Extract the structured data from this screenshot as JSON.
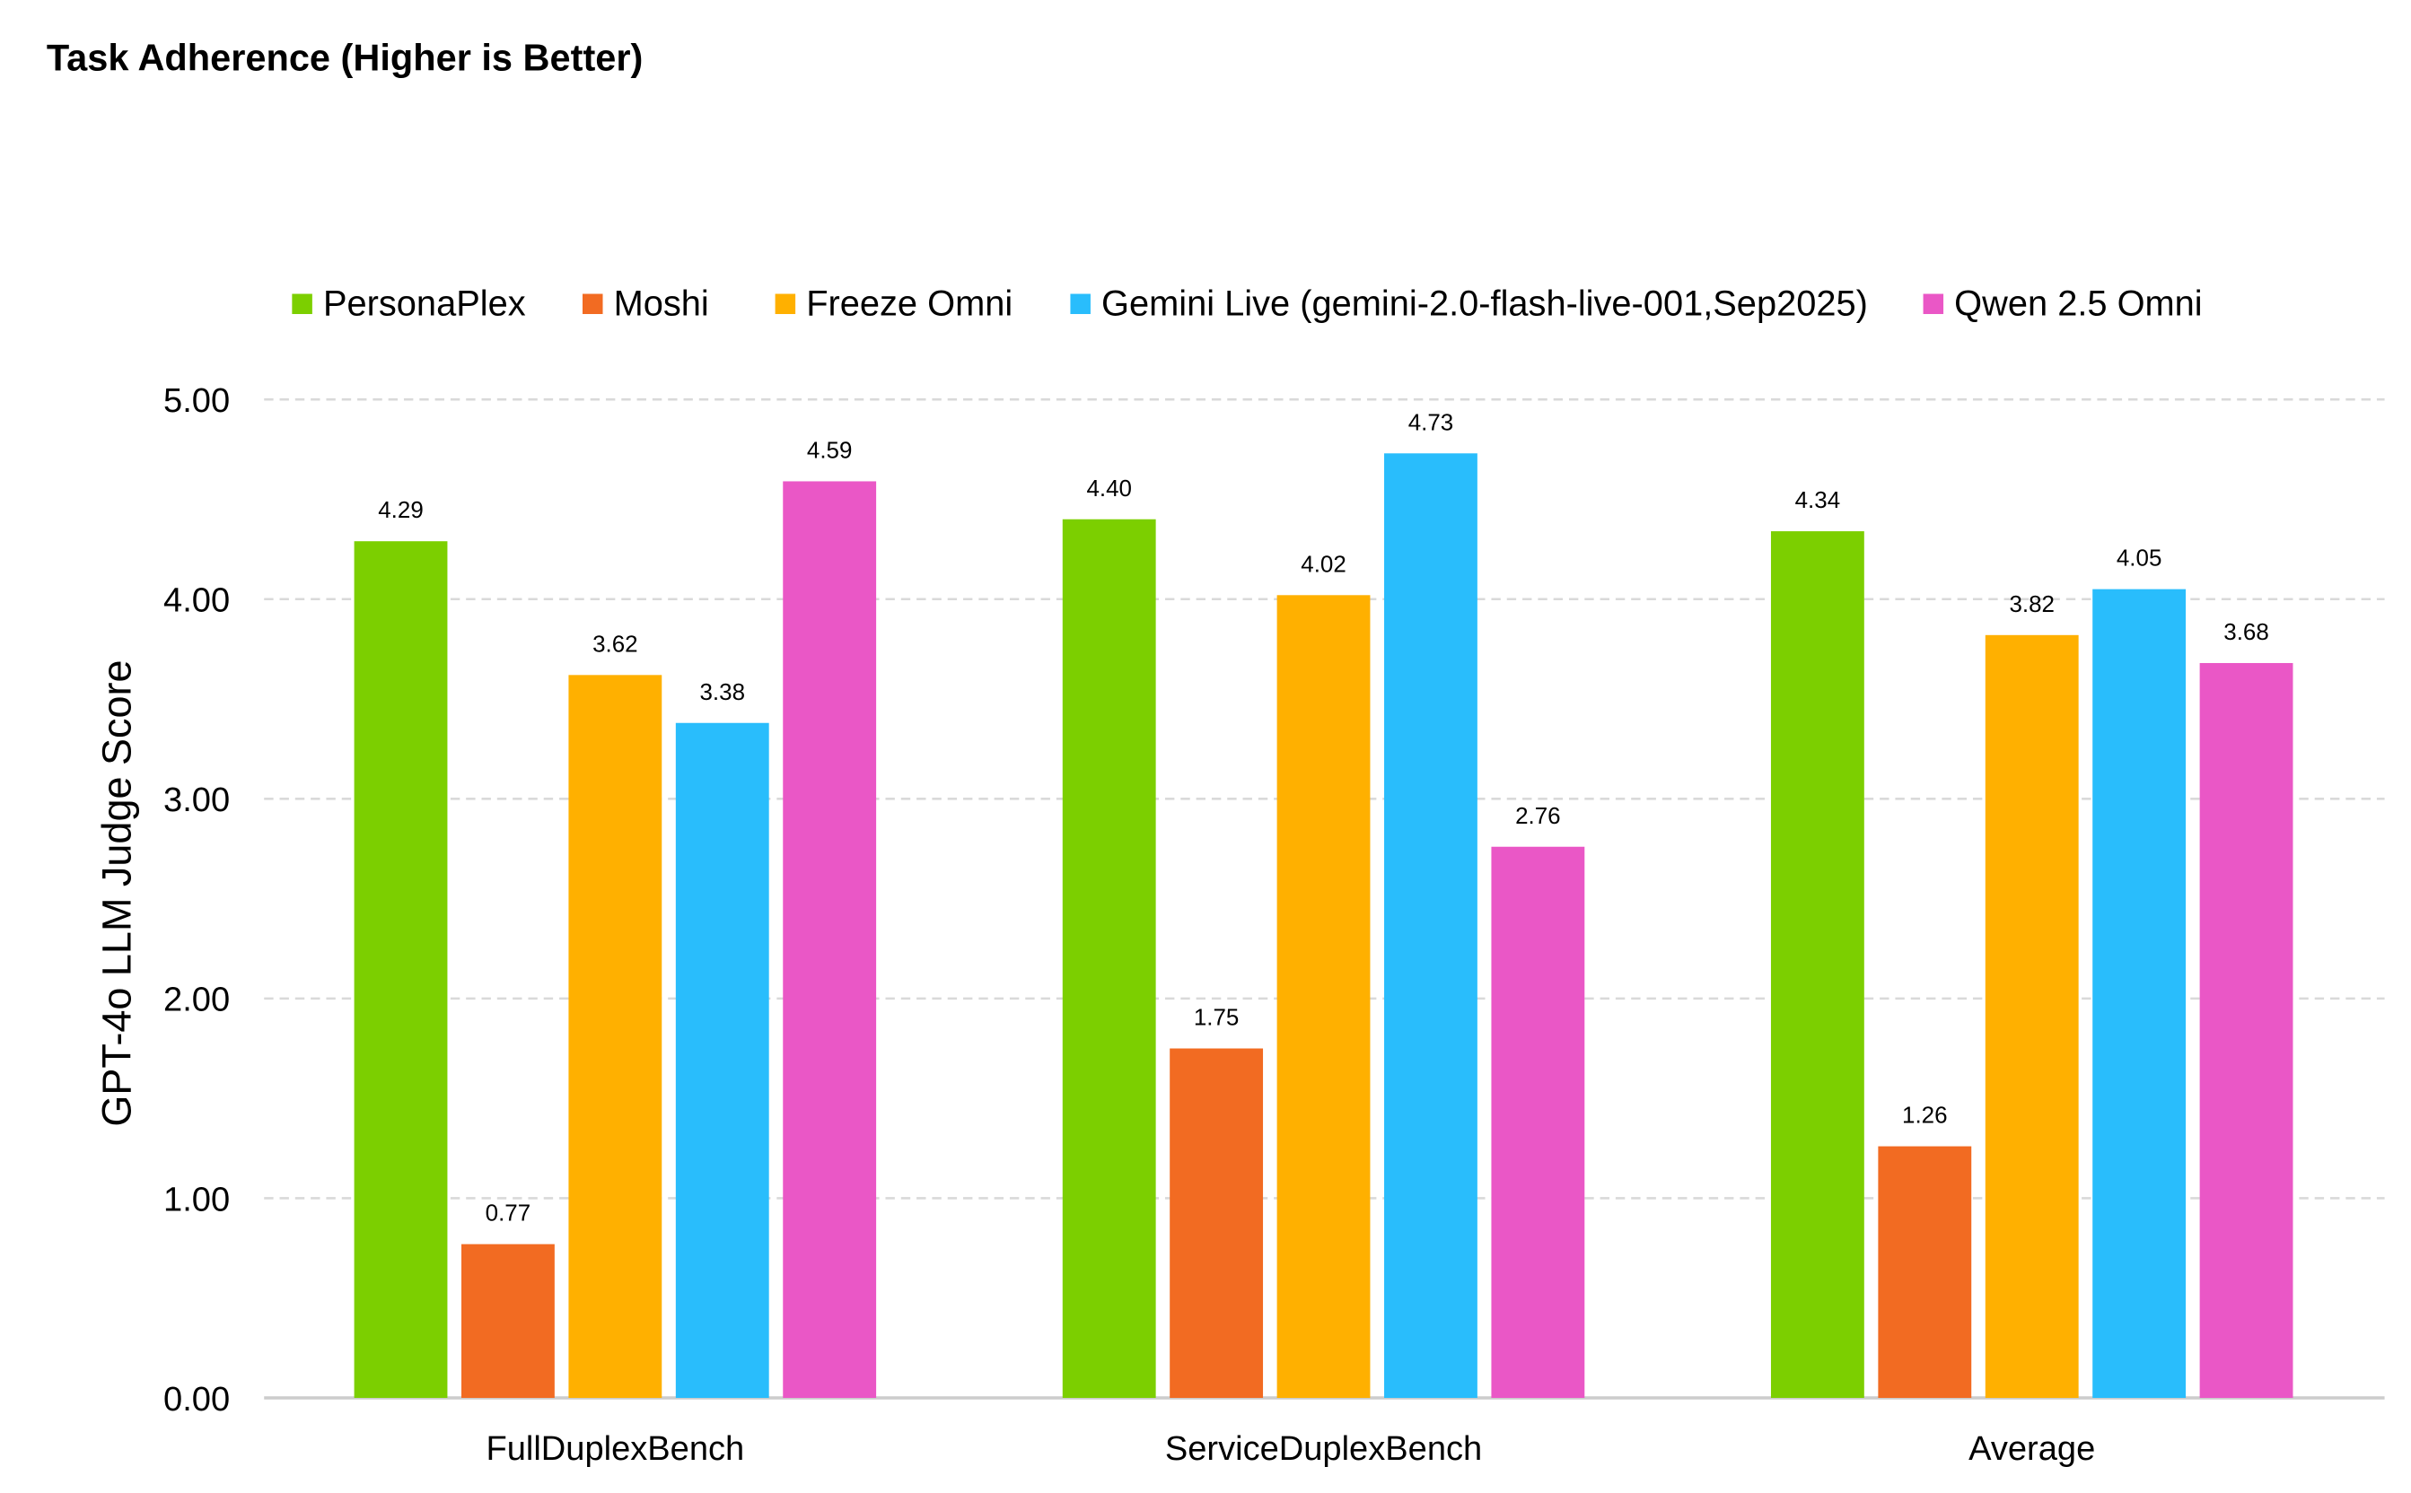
{
  "chart_data": {
    "type": "bar",
    "title": "Task Adherence (Higher is Better)",
    "xlabel": "",
    "ylabel": "GPT-4o LLM Judge Score",
    "ylim": [
      0,
      5
    ],
    "yticks": [
      "0.00",
      "1.00",
      "2.00",
      "3.00",
      "4.00",
      "5.00"
    ],
    "grid": true,
    "legend_position": "top",
    "categories": [
      "FullDuplexBench",
      "ServiceDuplexBench",
      "Average"
    ],
    "series": [
      {
        "name": "PersonaPlex",
        "color": "#7ccf00",
        "values": [
          4.29,
          4.4,
          4.34
        ]
      },
      {
        "name": "Moshi",
        "color": "#f26b22",
        "values": [
          0.77,
          1.75,
          1.26
        ]
      },
      {
        "name": "Freeze Omni",
        "color": "#ffb000",
        "values": [
          3.62,
          4.02,
          3.82
        ]
      },
      {
        "name": "Gemini Live (gemini-2.0-flash-live-001,Sep2025)",
        "color": "#29bdfc",
        "values": [
          3.38,
          4.73,
          4.05
        ]
      },
      {
        "name": "Qwen 2.5 Omni",
        "color": "#ea57c6",
        "values": [
          4.59,
          2.76,
          3.68
        ]
      }
    ]
  }
}
